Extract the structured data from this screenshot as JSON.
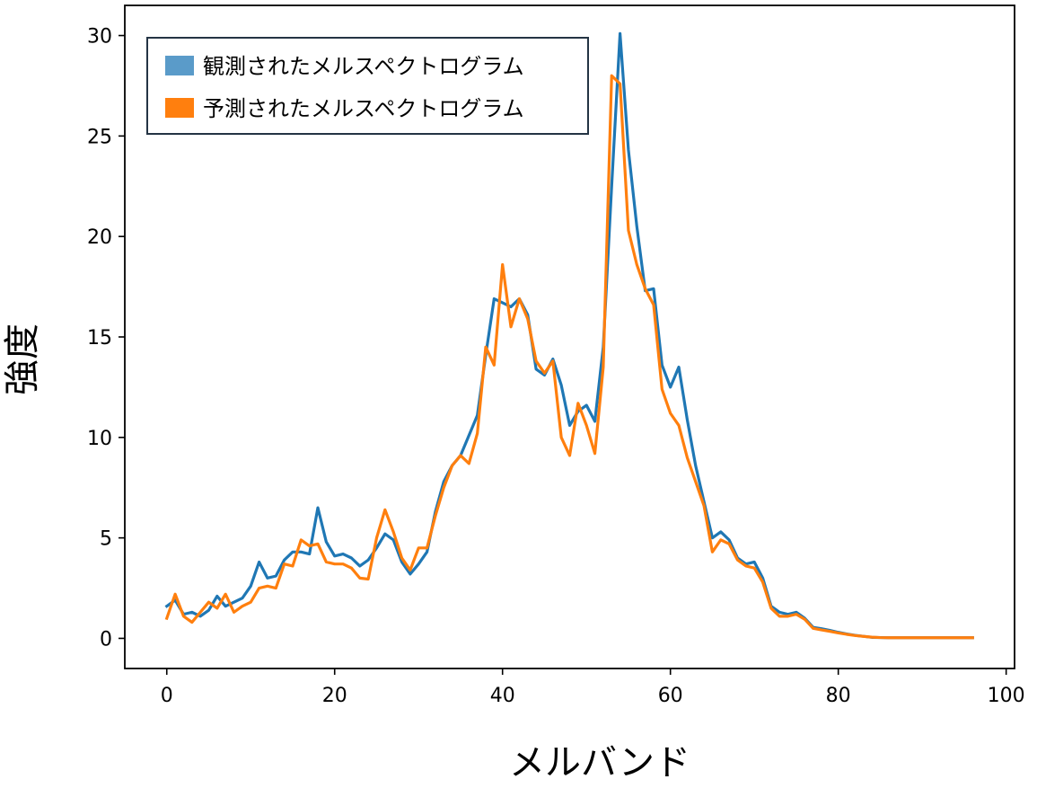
{
  "chart_data": {
    "type": "line",
    "xlabel": "メルバンド",
    "ylabel": "強度",
    "xlim": [
      -5,
      101
    ],
    "ylim": [
      -1.5,
      31.5
    ],
    "xticks": [
      0,
      20,
      40,
      60,
      80,
      100
    ],
    "yticks": [
      0,
      5,
      10,
      15,
      20,
      25,
      30
    ],
    "grid": false,
    "legend_position": "top-left",
    "series": [
      {
        "name": "観測されたメルスペクトログラム",
        "color": "#1f77b4",
        "legend_color": "#5a9bc9",
        "x": [
          0,
          1,
          2,
          3,
          4,
          5,
          6,
          7,
          8,
          9,
          10,
          11,
          12,
          13,
          14,
          15,
          16,
          17,
          18,
          19,
          20,
          21,
          22,
          23,
          24,
          25,
          26,
          27,
          28,
          29,
          30,
          31,
          32,
          33,
          34,
          35,
          36,
          37,
          38,
          39,
          40,
          41,
          42,
          43,
          44,
          45,
          46,
          47,
          48,
          49,
          50,
          51,
          52,
          53,
          54,
          55,
          56,
          57,
          58,
          59,
          60,
          61,
          62,
          63,
          64,
          65,
          66,
          67,
          68,
          69,
          70,
          71,
          72,
          73,
          74,
          75,
          76,
          77,
          78,
          79,
          80,
          81,
          82,
          83,
          84,
          85,
          86,
          87,
          88,
          89,
          90,
          91,
          92,
          93,
          94,
          95,
          96
        ],
        "values": [
          1.6,
          1.9,
          1.2,
          1.3,
          1.1,
          1.4,
          2.1,
          1.6,
          1.8,
          2.0,
          2.6,
          3.8,
          3.0,
          3.1,
          3.9,
          4.3,
          4.3,
          4.2,
          6.5,
          4.8,
          4.1,
          4.2,
          4.0,
          3.6,
          3.9,
          4.5,
          5.2,
          4.9,
          3.8,
          3.2,
          3.7,
          4.3,
          6.3,
          7.8,
          8.6,
          9.1,
          10.1,
          11.1,
          14.1,
          16.9,
          16.7,
          16.5,
          16.9,
          16.1,
          13.4,
          13.1,
          13.9,
          12.6,
          10.6,
          11.3,
          11.6,
          10.8,
          14.5,
          22.5,
          30.1,
          24.3,
          20.5,
          17.3,
          17.4,
          13.6,
          12.5,
          13.5,
          10.9,
          8.6,
          6.8,
          5.0,
          5.3,
          4.9,
          4.0,
          3.7,
          3.8,
          3.0,
          1.6,
          1.3,
          1.2,
          1.3,
          1.0,
          0.55,
          0.48,
          0.4,
          0.3,
          0.22,
          0.15,
          0.1,
          0.05,
          0.04,
          0.03,
          0.03,
          0.03,
          0.03,
          0.03,
          0.03,
          0.03,
          0.03,
          0.03,
          0.03,
          0.03
        ]
      },
      {
        "name": "予測されたメルスペクトログラム",
        "color": "#ff7f0e",
        "legend_color": "#ff7f0e",
        "x": [
          0,
          1,
          2,
          3,
          4,
          5,
          6,
          7,
          8,
          9,
          10,
          11,
          12,
          13,
          14,
          15,
          16,
          17,
          18,
          19,
          20,
          21,
          22,
          23,
          24,
          25,
          26,
          27,
          28,
          29,
          30,
          31,
          32,
          33,
          34,
          35,
          36,
          37,
          38,
          39,
          40,
          41,
          42,
          43,
          44,
          45,
          46,
          47,
          48,
          49,
          50,
          51,
          52,
          53,
          54,
          55,
          56,
          57,
          58,
          59,
          60,
          61,
          62,
          63,
          64,
          65,
          66,
          67,
          68,
          69,
          70,
          71,
          72,
          73,
          74,
          75,
          76,
          77,
          78,
          79,
          80,
          81,
          82,
          83,
          84,
          85,
          86,
          87,
          88,
          89,
          90,
          91,
          92,
          93,
          94,
          95,
          96
        ],
        "values": [
          1.0,
          2.2,
          1.1,
          0.8,
          1.3,
          1.8,
          1.5,
          2.2,
          1.3,
          1.6,
          1.8,
          2.5,
          2.6,
          2.5,
          3.7,
          3.6,
          4.9,
          4.6,
          4.7,
          3.8,
          3.7,
          3.7,
          3.5,
          3.0,
          2.95,
          5.0,
          6.4,
          5.3,
          4.0,
          3.4,
          4.5,
          4.5,
          6.1,
          7.5,
          8.6,
          9.1,
          8.7,
          10.2,
          14.5,
          13.6,
          18.6,
          15.5,
          16.9,
          15.9,
          13.8,
          13.2,
          13.8,
          10.0,
          9.1,
          11.7,
          10.6,
          9.2,
          13.5,
          28.0,
          27.6,
          20.3,
          18.6,
          17.4,
          16.6,
          12.4,
          11.2,
          10.6,
          9.0,
          7.8,
          6.6,
          4.3,
          4.9,
          4.7,
          3.9,
          3.6,
          3.5,
          2.8,
          1.5,
          1.1,
          1.1,
          1.2,
          0.95,
          0.5,
          0.42,
          0.35,
          0.27,
          0.2,
          0.14,
          0.1,
          0.06,
          0.04,
          0.03,
          0.03,
          0.03,
          0.03,
          0.03,
          0.03,
          0.03,
          0.03,
          0.03,
          0.03,
          0.03
        ]
      }
    ]
  }
}
